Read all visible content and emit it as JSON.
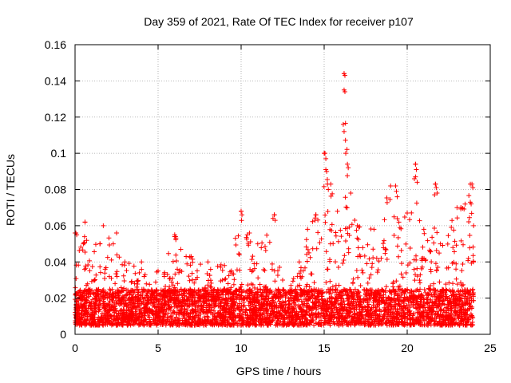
{
  "chart_data": {
    "type": "scatter",
    "title": "Day 359 of 2021, Rate Of TEC Index for receiver p107",
    "xlabel": "GPS time / hours",
    "ylabel": "ROTI / TECUs",
    "xlim": [
      0,
      25
    ],
    "ylim": [
      0,
      0.16
    ],
    "xticks": [
      0,
      5,
      10,
      15,
      20,
      25
    ],
    "xtick_labels": [
      "0",
      "5",
      "10",
      "15",
      "20",
      "25"
    ],
    "yticks": [
      0,
      0.02,
      0.04,
      0.06,
      0.08,
      0.1,
      0.12,
      0.14,
      0.16
    ],
    "ytick_labels": [
      "0",
      "0.02",
      "0.04",
      "0.06",
      "0.08",
      "0.1",
      "0.12",
      "0.14",
      "0.16"
    ],
    "grid": true,
    "marker": "+",
    "series": [
      {
        "name": "ROTI",
        "color": "#ff0000",
        "x_range": [
          0,
          24
        ],
        "baseline_range": [
          0.005,
          0.025
        ],
        "envelope": [
          {
            "x": 0.0,
            "y": 0.056
          },
          {
            "x": 0.5,
            "y": 0.05
          },
          {
            "x": 0.6,
            "y": 0.062
          },
          {
            "x": 1.5,
            "y": 0.05
          },
          {
            "x": 1.7,
            "y": 0.06
          },
          {
            "x": 2.3,
            "y": 0.05
          },
          {
            "x": 2.5,
            "y": 0.056
          },
          {
            "x": 3.0,
            "y": 0.04
          },
          {
            "x": 4.0,
            "y": 0.04
          },
          {
            "x": 5.0,
            "y": 0.035
          },
          {
            "x": 6.0,
            "y": 0.054
          },
          {
            "x": 7.0,
            "y": 0.043
          },
          {
            "x": 8.0,
            "y": 0.04
          },
          {
            "x": 9.0,
            "y": 0.038
          },
          {
            "x": 10.0,
            "y": 0.068
          },
          {
            "x": 10.5,
            "y": 0.056
          },
          {
            "x": 11.0,
            "y": 0.05
          },
          {
            "x": 12.0,
            "y": 0.066
          },
          {
            "x": 12.5,
            "y": 0.03
          },
          {
            "x": 13.0,
            "y": 0.027
          },
          {
            "x": 13.5,
            "y": 0.04
          },
          {
            "x": 14.0,
            "y": 0.058
          },
          {
            "x": 14.5,
            "y": 0.066
          },
          {
            "x": 15.0,
            "y": 0.1
          },
          {
            "x": 15.4,
            "y": 0.083
          },
          {
            "x": 15.8,
            "y": 0.068
          },
          {
            "x": 16.2,
            "y": 0.144
          },
          {
            "x": 16.6,
            "y": 0.078
          },
          {
            "x": 17.0,
            "y": 0.06
          },
          {
            "x": 18.0,
            "y": 0.058
          },
          {
            "x": 19.0,
            "y": 0.082
          },
          {
            "x": 19.5,
            "y": 0.062
          },
          {
            "x": 20.0,
            "y": 0.067
          },
          {
            "x": 20.5,
            "y": 0.094
          },
          {
            "x": 21.0,
            "y": 0.058
          },
          {
            "x": 21.7,
            "y": 0.083
          },
          {
            "x": 22.0,
            "y": 0.05
          },
          {
            "x": 23.0,
            "y": 0.07
          },
          {
            "x": 23.8,
            "y": 0.083
          },
          {
            "x": 24.0,
            "y": 0.06
          }
        ],
        "notable_points": [
          {
            "x": 16.2,
            "y": 0.144
          },
          {
            "x": 16.25,
            "y": 0.143
          },
          {
            "x": 16.2,
            "y": 0.135
          },
          {
            "x": 16.25,
            "y": 0.134
          },
          {
            "x": 16.15,
            "y": 0.116
          },
          {
            "x": 16.2,
            "y": 0.112
          },
          {
            "x": 16.3,
            "y": 0.1
          },
          {
            "x": 16.4,
            "y": 0.094
          },
          {
            "x": 16.45,
            "y": 0.092
          },
          {
            "x": 15.05,
            "y": 0.1
          },
          {
            "x": 15.1,
            "y": 0.097
          },
          {
            "x": 15.1,
            "y": 0.091
          },
          {
            "x": 15.15,
            "y": 0.09
          },
          {
            "x": 15.2,
            "y": 0.083
          },
          {
            "x": 15.25,
            "y": 0.08
          },
          {
            "x": 20.5,
            "y": 0.094
          },
          {
            "x": 20.55,
            "y": 0.091
          },
          {
            "x": 20.5,
            "y": 0.087
          },
          {
            "x": 20.6,
            "y": 0.084
          },
          {
            "x": 21.7,
            "y": 0.083
          },
          {
            "x": 21.75,
            "y": 0.081
          },
          {
            "x": 21.8,
            "y": 0.078
          },
          {
            "x": 19.3,
            "y": 0.082
          },
          {
            "x": 19.35,
            "y": 0.079
          },
          {
            "x": 19.4,
            "y": 0.076
          },
          {
            "x": 23.9,
            "y": 0.083
          },
          {
            "x": 23.95,
            "y": 0.081
          },
          {
            "x": 23.8,
            "y": 0.073
          },
          {
            "x": 23.85,
            "y": 0.072
          },
          {
            "x": 10.0,
            "y": 0.068
          },
          {
            "x": 10.05,
            "y": 0.066
          },
          {
            "x": 12.0,
            "y": 0.066
          },
          {
            "x": 12.05,
            "y": 0.063
          },
          {
            "x": 14.5,
            "y": 0.066
          },
          {
            "x": 14.45,
            "y": 0.063
          },
          {
            "x": 0.6,
            "y": 0.062
          },
          {
            "x": 6.0,
            "y": 0.055
          },
          {
            "x": 6.05,
            "y": 0.054
          },
          {
            "x": 0.05,
            "y": 0.056
          },
          {
            "x": 0.1,
            "y": 0.055
          }
        ]
      }
    ]
  }
}
